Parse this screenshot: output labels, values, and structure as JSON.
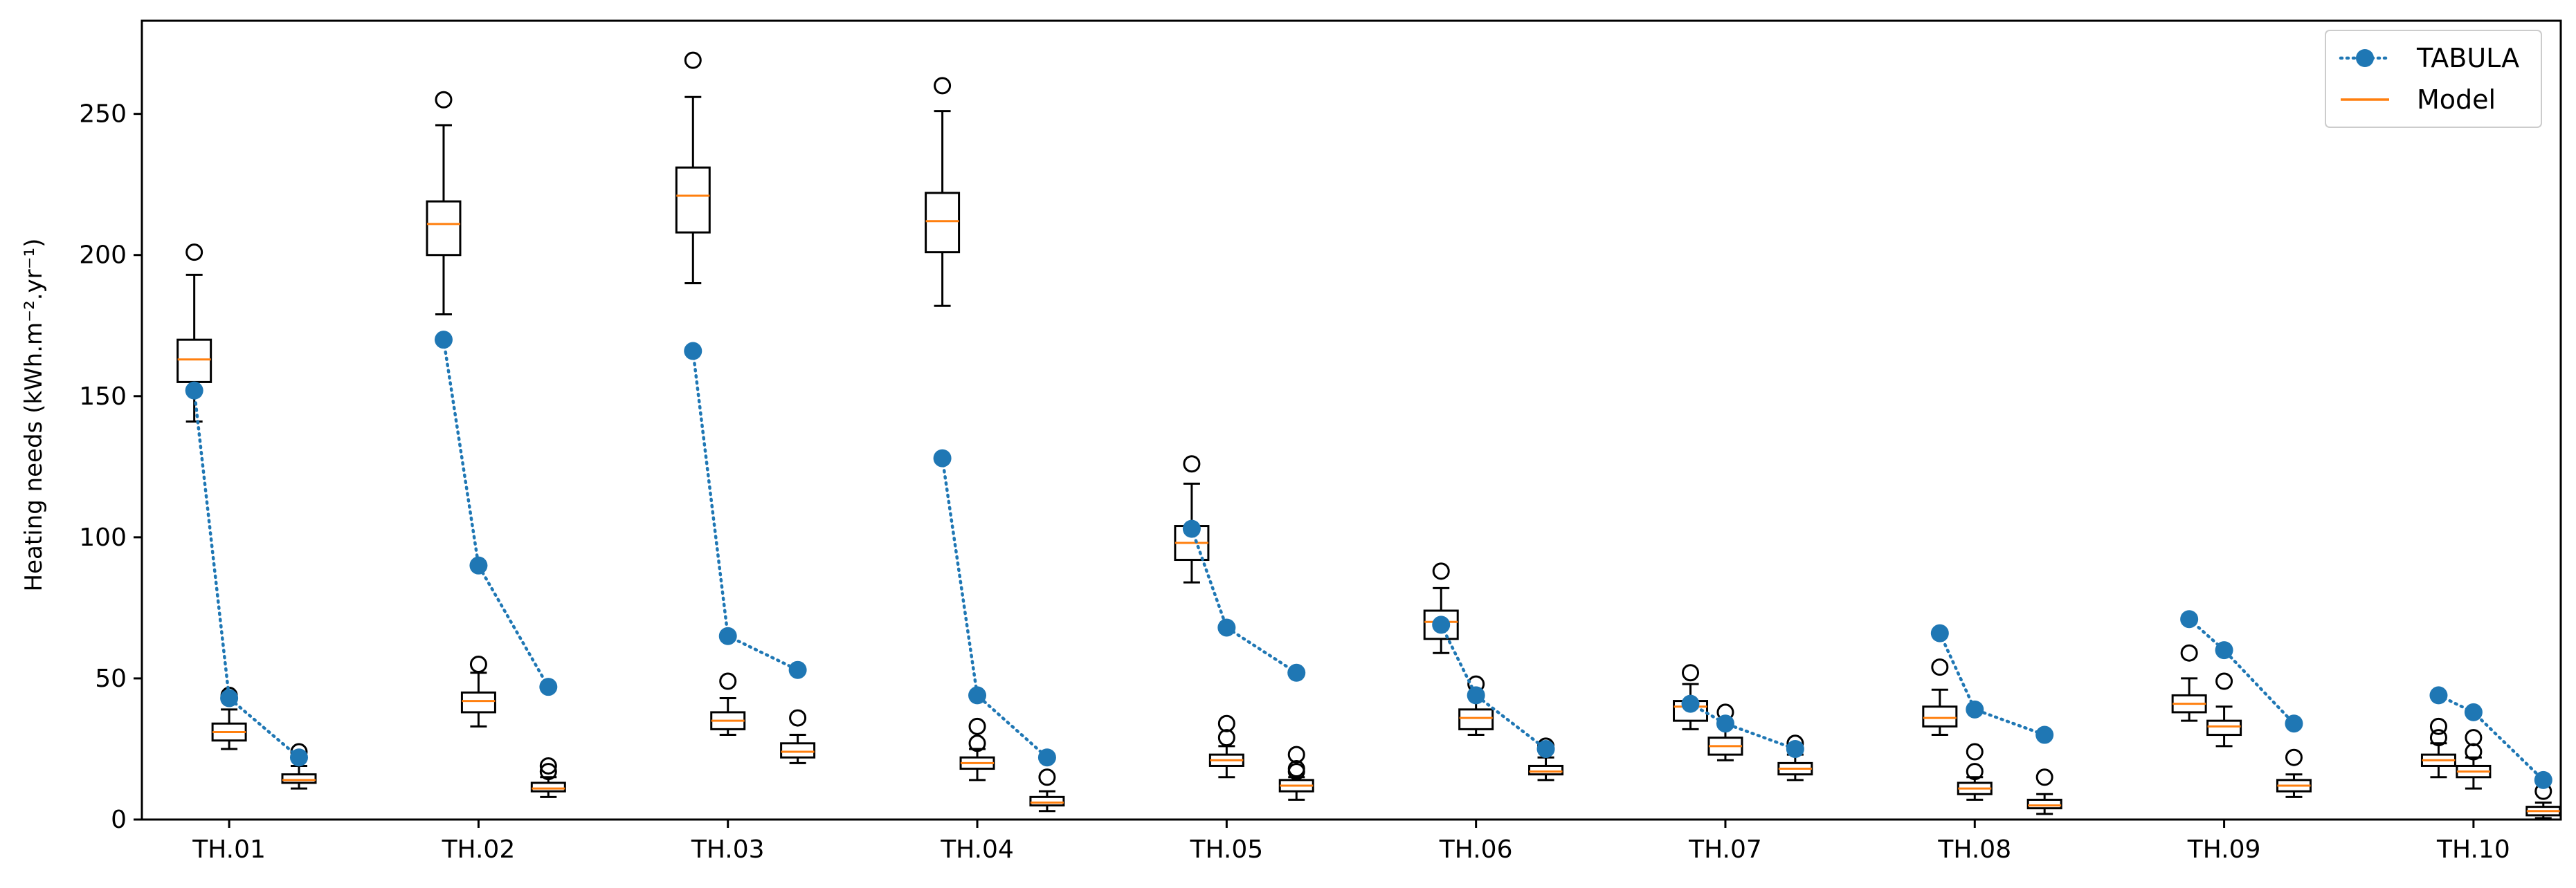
{
  "chart_data": {
    "type": "boxplot",
    "ylabel": "Heating needs (kWh.m⁻².yr⁻¹)",
    "ylim": [
      0,
      283
    ],
    "yticks": [
      0,
      50,
      100,
      150,
      200,
      250
    ],
    "xlim": [
      0.65,
      10.35
    ],
    "categories": [
      "TH.01",
      "TH.02",
      "TH.03",
      "TH.04",
      "TH.05",
      "TH.06",
      "TH.07",
      "TH.08",
      "TH.09",
      "TH.10"
    ],
    "legend": {
      "position": "top-right",
      "entries": [
        {
          "label": "TABULA",
          "style": "dotted-line-circle",
          "color": "#1f77b4"
        },
        {
          "label": "Model",
          "style": "solid-line",
          "color": "#ff7f0e"
        }
      ]
    },
    "colors": {
      "tabula": "#1f77b4",
      "median": "#ff7f0e",
      "box": "#000000"
    },
    "boxes": [
      {
        "group": "TH.01",
        "x": 0.86,
        "whislo": 141,
        "q1": 155,
        "med": 163,
        "q3": 170,
        "whishi": 193,
        "fliers": [
          201
        ]
      },
      {
        "group": "TH.01",
        "x": 1.0,
        "whislo": 25,
        "q1": 28,
        "med": 31,
        "q3": 34,
        "whislo_note": "",
        "whishi": 39,
        "fliers": [
          44
        ]
      },
      {
        "group": "TH.01",
        "x": 1.28,
        "whislo": 11,
        "q1": 13,
        "med": 14,
        "q3": 16,
        "whishi": 19,
        "fliers": [
          24
        ]
      },
      {
        "group": "TH.02",
        "x": 1.86,
        "whislo": 179,
        "q1": 200,
        "med": 211,
        "q3": 219,
        "whishi": 246,
        "fliers": [
          255
        ]
      },
      {
        "group": "TH.02",
        "x": 2.0,
        "whislo": 33,
        "q1": 38,
        "med": 42,
        "q3": 45,
        "whishi": 52,
        "fliers": [
          55
        ]
      },
      {
        "group": "TH.02",
        "x": 2.28,
        "whislo": 8,
        "q1": 10,
        "med": 11,
        "q3": 13,
        "whishi": 15,
        "fliers": [
          17,
          19
        ]
      },
      {
        "group": "TH.03",
        "x": 2.86,
        "whislo": 190,
        "q1": 208,
        "med": 221,
        "q3": 231,
        "whishi": 256,
        "fliers": [
          269
        ]
      },
      {
        "group": "TH.03",
        "x": 3.0,
        "whislo": 30,
        "q1": 32,
        "med": 35,
        "q3": 38,
        "whishi": 43,
        "fliers": [
          49
        ]
      },
      {
        "group": "TH.03",
        "x": 3.28,
        "whislo": 20,
        "q1": 22,
        "med": 24,
        "q3": 27,
        "whishi": 30,
        "fliers": [
          36
        ]
      },
      {
        "group": "TH.04",
        "x": 3.86,
        "whislo": 182,
        "q1": 201,
        "med": 212,
        "q3": 222,
        "whishi": 251,
        "fliers": [
          260
        ]
      },
      {
        "group": "TH.04",
        "x": 4.0,
        "whislo": 14,
        "q1": 18,
        "med": 20,
        "q3": 22,
        "whishi": 25,
        "fliers": [
          27,
          33
        ]
      },
      {
        "group": "TH.04",
        "x": 4.28,
        "whislo": 3,
        "q1": 5,
        "med": 6,
        "q3": 8,
        "whishi": 10,
        "fliers": [
          15
        ]
      },
      {
        "group": "TH.05",
        "x": 4.86,
        "whislo": 84,
        "q1": 92,
        "med": 98,
        "q3": 104,
        "whishi": 119,
        "fliers": [
          126
        ]
      },
      {
        "group": "TH.05",
        "x": 5.0,
        "whislo": 15,
        "q1": 19,
        "med": 21,
        "q3": 23,
        "whishi": 26,
        "fliers": [
          29,
          34
        ]
      },
      {
        "group": "TH.05",
        "x": 5.28,
        "whislo": 7,
        "q1": 10,
        "med": 12,
        "q3": 14,
        "whishi": 15,
        "fliers": [
          17,
          18,
          23
        ]
      },
      {
        "group": "TH.06",
        "x": 5.86,
        "whislo": 59,
        "q1": 64,
        "med": 70,
        "q3": 74,
        "whishi": 82,
        "fliers": [
          88
        ]
      },
      {
        "group": "TH.06",
        "x": 6.0,
        "whislo": 30,
        "q1": 32,
        "med": 36,
        "q3": 39,
        "whishi": 45,
        "fliers": [
          48
        ]
      },
      {
        "group": "TH.06",
        "x": 6.28,
        "whislo": 14,
        "q1": 16,
        "med": 17,
        "q3": 19,
        "whishi": 22,
        "fliers": [
          26
        ]
      },
      {
        "group": "TH.07",
        "x": 6.86,
        "whislo": 32,
        "q1": 35,
        "med": 40,
        "q3": 42,
        "whishi": 48,
        "fliers": [
          52
        ]
      },
      {
        "group": "TH.07",
        "x": 7.0,
        "whislo": 21,
        "q1": 23,
        "med": 26,
        "q3": 29,
        "whishi": 33,
        "fliers": [
          38
        ]
      },
      {
        "group": "TH.07",
        "x": 7.28,
        "whislo": 14,
        "q1": 16,
        "med": 18,
        "q3": 20,
        "whishi": 23,
        "fliers": [
          27
        ]
      },
      {
        "group": "TH.08",
        "x": 7.86,
        "whislo": 30,
        "q1": 33,
        "med": 36,
        "q3": 40,
        "whishi": 46,
        "fliers": [
          54
        ]
      },
      {
        "group": "TH.08",
        "x": 8.0,
        "whislo": 7,
        "q1": 9,
        "med": 11,
        "q3": 13,
        "whishi": 15,
        "fliers": [
          17,
          24
        ]
      },
      {
        "group": "TH.08",
        "x": 8.28,
        "whislo": 2,
        "q1": 4,
        "med": 5,
        "q3": 7,
        "whishi": 9,
        "fliers": [
          15
        ]
      },
      {
        "group": "TH.09",
        "x": 8.86,
        "whislo": 35,
        "q1": 38,
        "med": 41,
        "q3": 44,
        "whishi": 50,
        "fliers": [
          59
        ]
      },
      {
        "group": "TH.09",
        "x": 9.0,
        "whislo": 26,
        "q1": 30,
        "med": 33,
        "q3": 35,
        "whishi": 40,
        "fliers": [
          49
        ]
      },
      {
        "group": "TH.09",
        "x": 9.28,
        "whislo": 8,
        "q1": 10,
        "med": 12,
        "q3": 14,
        "whishi": 16,
        "fliers": [
          22
        ]
      },
      {
        "group": "TH.10",
        "x": 9.86,
        "whislo": 15,
        "q1": 19,
        "med": 21,
        "q3": 23,
        "whishi": 27,
        "fliers": [
          29,
          33
        ]
      },
      {
        "group": "TH.10",
        "x": 10.0,
        "whislo": 11,
        "q1": 15,
        "med": 17,
        "q3": 19,
        "whishi": 22,
        "fliers": [
          24,
          29
        ]
      },
      {
        "group": "TH.10",
        "x": 10.28,
        "whislo": 0.5,
        "q1": 1.5,
        "med": 3,
        "q3": 4.5,
        "whishi": 6,
        "fliers": [
          10
        ]
      }
    ],
    "tabula": [
      {
        "group": "TH.01",
        "points": [
          {
            "x": 0.86,
            "y": 152
          },
          {
            "x": 1.0,
            "y": 43
          },
          {
            "x": 1.28,
            "y": 22
          }
        ]
      },
      {
        "group": "TH.02",
        "points": [
          {
            "x": 1.86,
            "y": 170
          },
          {
            "x": 2.0,
            "y": 90
          },
          {
            "x": 2.28,
            "y": 47
          }
        ]
      },
      {
        "group": "TH.03",
        "points": [
          {
            "x": 2.86,
            "y": 166
          },
          {
            "x": 3.0,
            "y": 65
          },
          {
            "x": 3.28,
            "y": 53
          }
        ]
      },
      {
        "group": "TH.04",
        "points": [
          {
            "x": 3.86,
            "y": 128
          },
          {
            "x": 4.0,
            "y": 44
          },
          {
            "x": 4.28,
            "y": 22
          }
        ]
      },
      {
        "group": "TH.05",
        "points": [
          {
            "x": 4.86,
            "y": 103
          },
          {
            "x": 5.0,
            "y": 68
          },
          {
            "x": 5.28,
            "y": 52
          }
        ]
      },
      {
        "group": "TH.06",
        "points": [
          {
            "x": 5.86,
            "y": 69
          },
          {
            "x": 6.0,
            "y": 44
          },
          {
            "x": 6.28,
            "y": 25
          }
        ]
      },
      {
        "group": "TH.07",
        "points": [
          {
            "x": 6.86,
            "y": 41
          },
          {
            "x": 7.0,
            "y": 34
          },
          {
            "x": 7.28,
            "y": 25
          }
        ]
      },
      {
        "group": "TH.08",
        "points": [
          {
            "x": 7.86,
            "y": 66
          },
          {
            "x": 8.0,
            "y": 39
          },
          {
            "x": 8.28,
            "y": 30
          }
        ]
      },
      {
        "group": "TH.09",
        "points": [
          {
            "x": 8.86,
            "y": 71
          },
          {
            "x": 9.0,
            "y": 60
          },
          {
            "x": 9.28,
            "y": 34
          }
        ]
      },
      {
        "group": "TH.10",
        "points": [
          {
            "x": 9.86,
            "y": 44
          },
          {
            "x": 10.0,
            "y": 38
          },
          {
            "x": 10.28,
            "y": 14
          }
        ]
      }
    ]
  }
}
